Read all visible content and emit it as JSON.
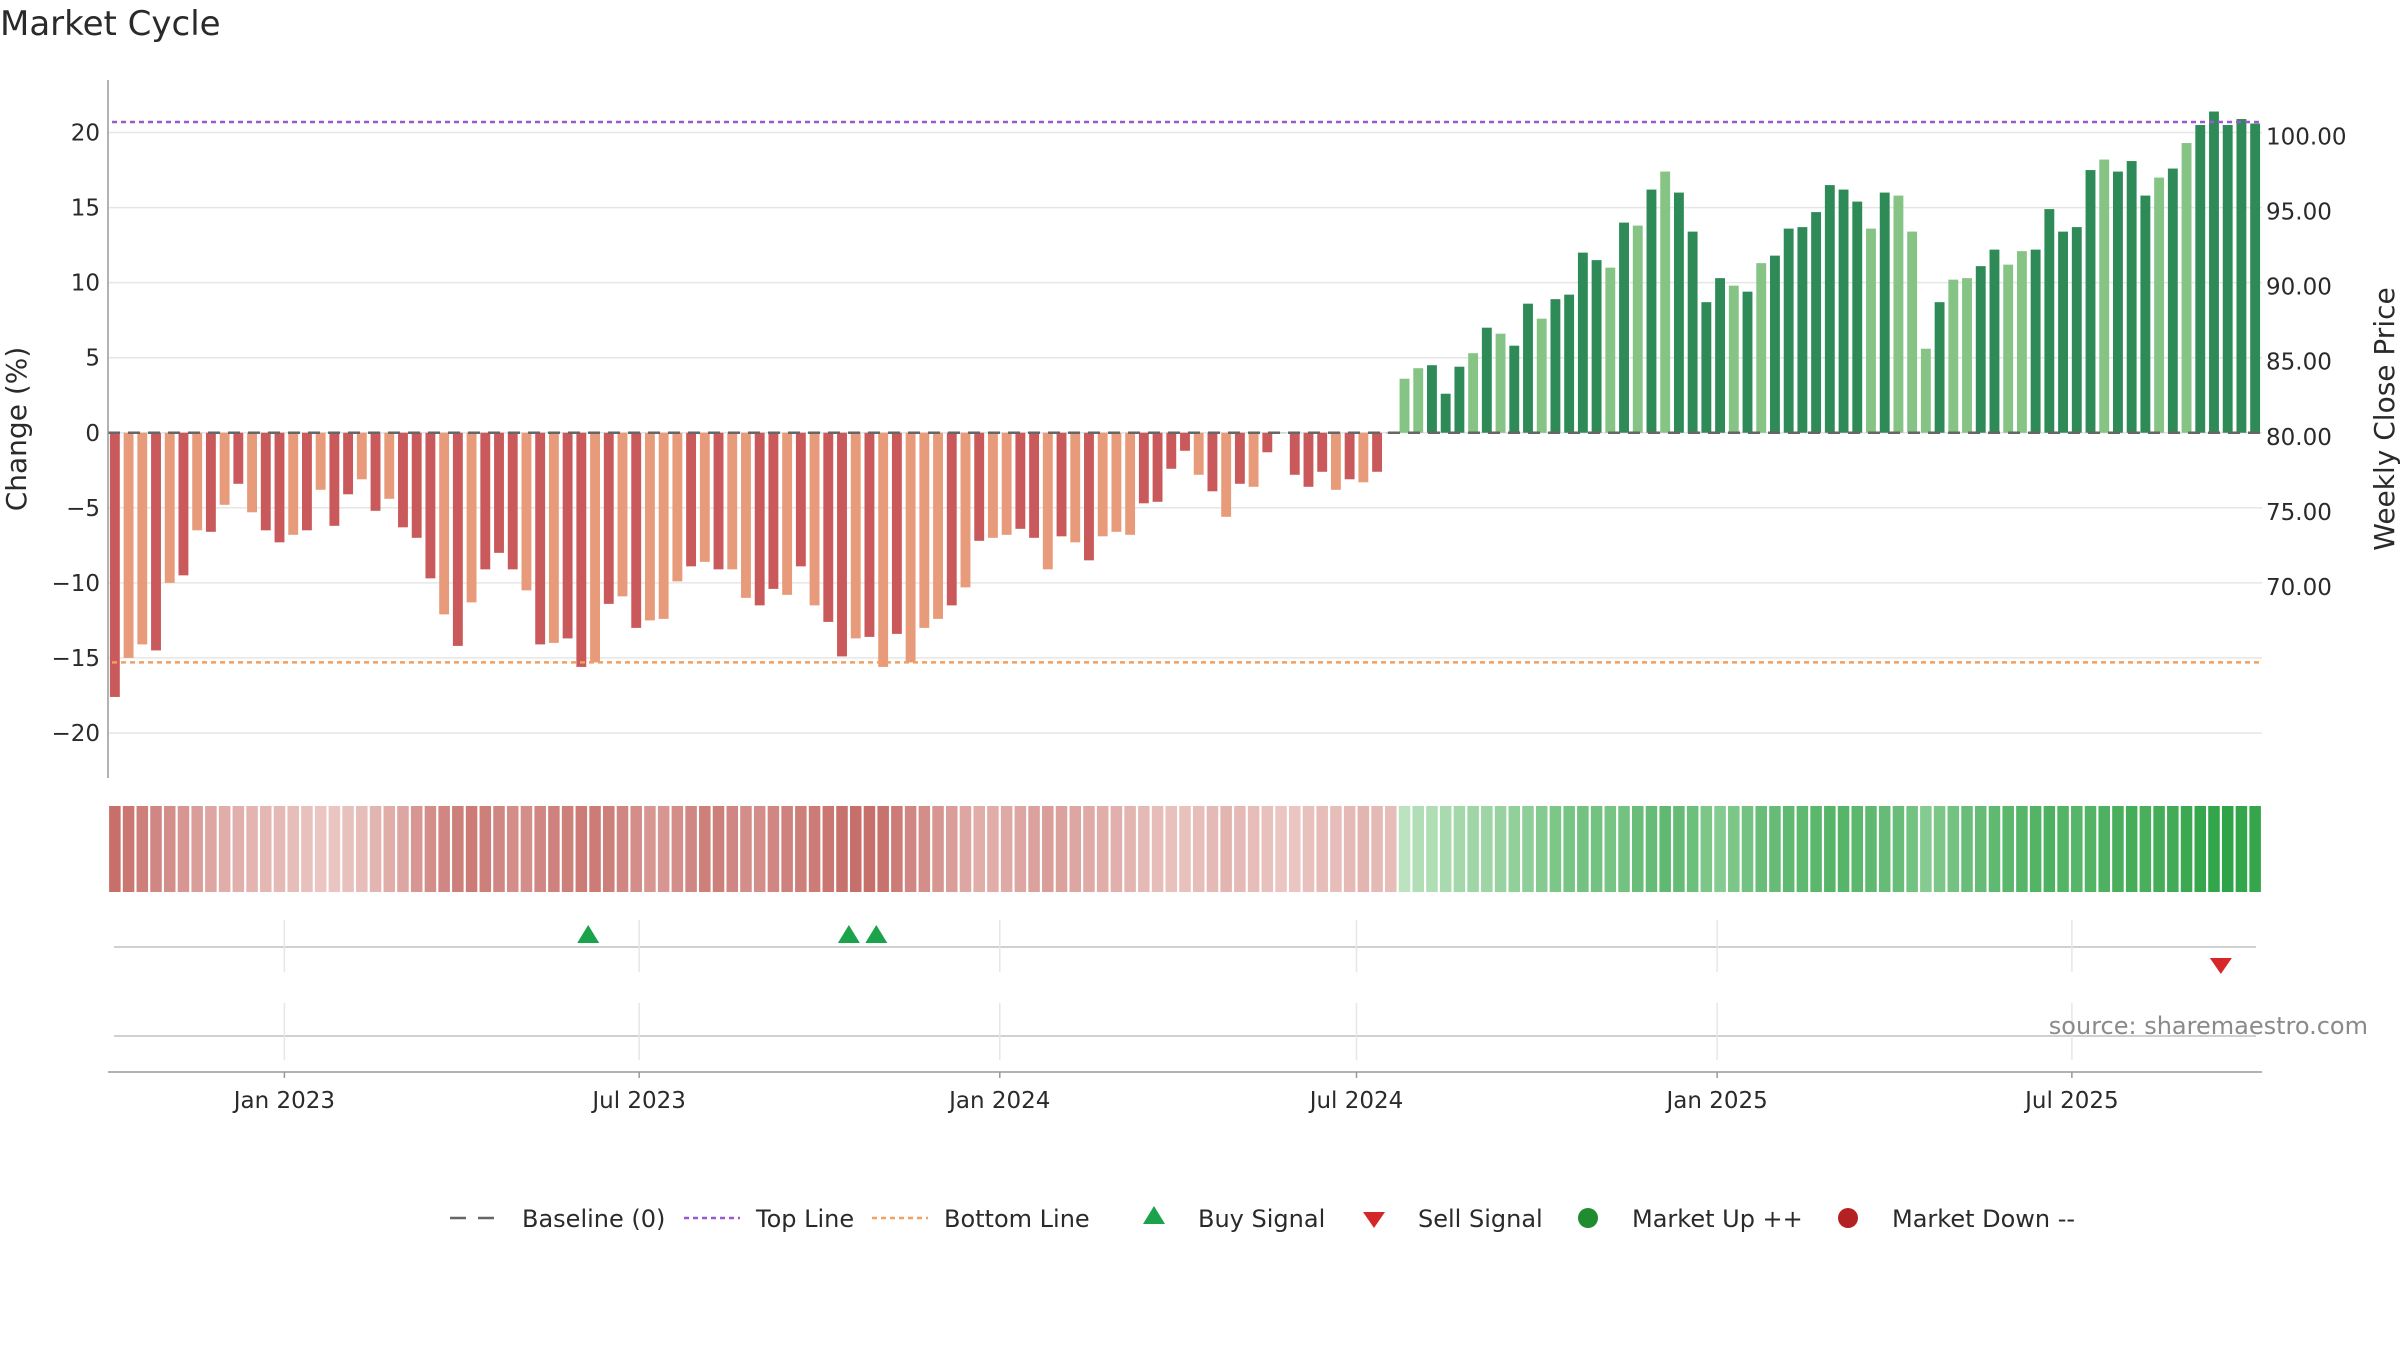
{
  "title": "Market Cycle",
  "source": "source: sharemaestro.com",
  "colors": {
    "neg_dark": "#c9595a",
    "neg_light": "#e89b7a",
    "pos_dark": "#2e8b57",
    "pos_light": "#85c485",
    "top_line": "#9b59d0",
    "bottom_line": "#f0a060",
    "buy": "#1aa34a",
    "sell": "#d62728",
    "market_up": "#1f8c2f",
    "market_down": "#b22222",
    "grid": "#e6e6e6",
    "baseline": "#666666"
  },
  "chart_data": {
    "type": "bar",
    "x_type": "date",
    "start_date": "2022-10-03",
    "interval_days": 7,
    "y_left": {
      "label": "Change (%)",
      "range": [
        -23,
        23.5
      ],
      "ticks": [
        20,
        15,
        10,
        5,
        0,
        -5,
        -10,
        -15,
        -20
      ]
    },
    "y_right": {
      "label": "Weekly Close Price",
      "ticks": [
        "100.00",
        "95.00",
        "90.00",
        "85.00",
        "80.00",
        "75.00",
        "70.00"
      ]
    },
    "x_ticks": [
      {
        "date": "2023-01-01",
        "label": "Jan 2023"
      },
      {
        "date": "2023-07-01",
        "label": "Jul 2023"
      },
      {
        "date": "2024-01-01",
        "label": "Jan 2024"
      },
      {
        "date": "2024-07-01",
        "label": "Jul 2024"
      },
      {
        "date": "2025-01-01",
        "label": "Jan 2025"
      },
      {
        "date": "2025-07-01",
        "label": "Jul 2025"
      }
    ],
    "top_line": 20.7,
    "bottom_line": -15.3,
    "values": [
      -17.6,
      -15.0,
      -14.1,
      -14.5,
      -10.0,
      -9.5,
      -6.5,
      -6.6,
      -4.8,
      -3.4,
      -5.3,
      -6.5,
      -7.3,
      -6.8,
      -6.5,
      -3.8,
      -6.2,
      -4.1,
      -3.1,
      -5.2,
      -4.4,
      -6.3,
      -7.0,
      -9.7,
      -12.1,
      -14.2,
      -11.3,
      -9.1,
      -8.0,
      -9.1,
      -10.5,
      -14.1,
      -14.0,
      -13.7,
      -15.6,
      -15.3,
      -11.4,
      -10.9,
      -13.0,
      -12.5,
      -12.4,
      -9.9,
      -8.9,
      -8.6,
      -9.1,
      -9.1,
      -11.0,
      -11.5,
      -10.4,
      -10.8,
      -8.9,
      -11.5,
      -12.6,
      -14.9,
      -13.7,
      -13.6,
      -15.6,
      -13.4,
      -15.3,
      -13.0,
      -12.4,
      -11.5,
      -10.3,
      -7.2,
      -7.0,
      -6.8,
      -6.4,
      -7.0,
      -9.1,
      -6.9,
      -7.3,
      -8.5,
      -6.9,
      -6.6,
      -6.8,
      -4.7,
      -4.6,
      -2.4,
      -1.2,
      -2.8,
      -3.9,
      -5.6,
      -3.4,
      -3.6,
      -1.3,
      0,
      -2.8,
      -3.6,
      -2.6,
      -3.8,
      -3.1,
      -3.3,
      -2.6,
      0,
      3.6,
      4.3,
      4.5,
      2.6,
      4.4,
      5.3,
      7.0,
      6.6,
      5.8,
      8.6,
      7.6,
      8.9,
      9.2,
      12.0,
      11.5,
      11.0,
      14.0,
      13.8,
      16.2,
      17.4,
      16.0,
      13.4,
      8.7,
      10.3,
      9.8,
      9.4,
      11.3,
      11.8,
      13.6,
      13.7,
      14.7,
      16.5,
      16.2,
      15.4,
      13.6,
      16.0,
      15.8,
      13.4,
      5.6,
      8.7,
      10.2,
      10.3,
      11.1,
      12.2,
      11.2,
      12.1,
      12.2,
      14.9,
      13.4,
      13.7,
      17.5,
      18.2,
      17.4,
      18.1,
      15.8,
      17.0,
      17.6,
      19.3,
      20.5,
      21.4,
      20.5,
      20.9,
      20.6
    ],
    "bar_shades": "dlldldldldlddldlddldldddldldddldlddldldllldldllddldlddldldllldldllddldldlllddddldldldldddldlddlldddldlddlddddldldlddddldldddddddldllldllddlldddddldddldldddddldlll",
    "strength_strip": [
      -0.7,
      -0.65,
      -0.6,
      -0.55,
      -0.5,
      -0.45,
      -0.4,
      -0.35,
      -0.3,
      -0.28,
      -0.26,
      -0.24,
      -0.22,
      -0.2,
      -0.18,
      -0.15,
      -0.15,
      -0.18,
      -0.2,
      -0.25,
      -0.3,
      -0.35,
      -0.45,
      -0.5,
      -0.55,
      -0.6,
      -0.62,
      -0.6,
      -0.55,
      -0.5,
      -0.5,
      -0.55,
      -0.58,
      -0.6,
      -0.62,
      -0.62,
      -0.6,
      -0.55,
      -0.5,
      -0.45,
      -0.45,
      -0.5,
      -0.55,
      -0.6,
      -0.6,
      -0.55,
      -0.5,
      -0.5,
      -0.55,
      -0.58,
      -0.6,
      -0.62,
      -0.65,
      -0.68,
      -0.7,
      -0.7,
      -0.68,
      -0.62,
      -0.55,
      -0.5,
      -0.45,
      -0.4,
      -0.35,
      -0.3,
      -0.3,
      -0.32,
      -0.35,
      -0.38,
      -0.4,
      -0.38,
      -0.35,
      -0.32,
      -0.3,
      -0.28,
      -0.25,
      -0.22,
      -0.2,
      -0.18,
      -0.18,
      -0.2,
      -0.22,
      -0.25,
      -0.22,
      -0.2,
      -0.18,
      -0.15,
      -0.15,
      -0.18,
      -0.2,
      -0.2,
      -0.22,
      -0.25,
      -0.22,
      -0.2,
      0.15,
      0.2,
      0.22,
      0.25,
      0.28,
      0.3,
      0.32,
      0.35,
      0.38,
      0.4,
      0.45,
      0.5,
      0.52,
      0.55,
      0.55,
      0.52,
      0.55,
      0.6,
      0.62,
      0.65,
      0.62,
      0.58,
      0.5,
      0.45,
      0.5,
      0.55,
      0.6,
      0.62,
      0.65,
      0.65,
      0.68,
      0.7,
      0.7,
      0.68,
      0.65,
      0.62,
      0.6,
      0.55,
      0.45,
      0.5,
      0.55,
      0.6,
      0.62,
      0.65,
      0.68,
      0.7,
      0.72,
      0.75,
      0.72,
      0.7,
      0.72,
      0.75,
      0.78,
      0.8,
      0.78,
      0.8,
      0.82,
      0.85,
      0.88,
      0.9,
      0.92,
      0.9,
      0.88
    ],
    "buy_signals": [
      "2023-06-05",
      "2023-10-16",
      "2023-10-30"
    ],
    "sell_signals": [
      "2025-09-15"
    ],
    "legend": [
      {
        "label": "Baseline (0)",
        "symbol": "dash-grey"
      },
      {
        "label": "Top Line",
        "symbol": "dot-purple"
      },
      {
        "label": "Bottom Line",
        "symbol": "dot-orange"
      },
      {
        "label": "Buy Signal",
        "symbol": "triangle-up-green"
      },
      {
        "label": "Sell Signal",
        "symbol": "triangle-down-red"
      },
      {
        "label": "Market Up ++",
        "symbol": "circle-green"
      },
      {
        "label": "Market Down --",
        "symbol": "circle-darkred"
      }
    ]
  }
}
